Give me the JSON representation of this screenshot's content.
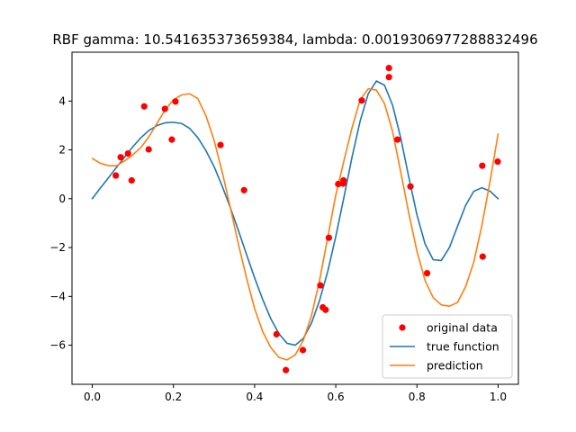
{
  "chart_data": {
    "type": "line",
    "title": "RBF gamma: 10.541635373659384, lambda: 0.0019306977288832496",
    "xlabel": "",
    "ylabel": "",
    "xlim": [
      -0.05,
      1.05
    ],
    "ylim": [
      -7.6,
      6.0
    ],
    "x_ticks": [
      0.0,
      0.2,
      0.4,
      0.6,
      0.8,
      1.0
    ],
    "x_tick_labels": [
      "0.0",
      "0.2",
      "0.4",
      "0.6",
      "0.8",
      "1.0"
    ],
    "y_ticks": [
      -6,
      -4,
      -2,
      0,
      2,
      4
    ],
    "y_tick_labels": [
      "−6",
      "−4",
      "−2",
      "0",
      "2",
      "4"
    ],
    "grid": false,
    "legend": {
      "position": "lower-right",
      "entries": [
        {
          "label": "original data",
          "kind": "marker",
          "color": "#ff0000"
        },
        {
          "label": "true function",
          "kind": "line",
          "color": "#1f77b4"
        },
        {
          "label": "prediction",
          "kind": "line",
          "color": "#ff7f0e"
        }
      ]
    },
    "scatter": {
      "name": "original data",
      "color": "#ff0000",
      "points": [
        [
          0.058,
          0.95
        ],
        [
          0.07,
          1.7
        ],
        [
          0.088,
          1.85
        ],
        [
          0.097,
          0.75
        ],
        [
          0.128,
          3.78
        ],
        [
          0.139,
          2.02
        ],
        [
          0.179,
          3.68
        ],
        [
          0.196,
          2.42
        ],
        [
          0.205,
          3.98
        ],
        [
          0.316,
          2.2
        ],
        [
          0.374,
          0.35
        ],
        [
          0.454,
          -5.55
        ],
        [
          0.477,
          -7.02
        ],
        [
          0.519,
          -6.2
        ],
        [
          0.562,
          -3.55
        ],
        [
          0.568,
          -4.45
        ],
        [
          0.575,
          -4.55
        ],
        [
          0.583,
          -1.6
        ],
        [
          0.606,
          0.6
        ],
        [
          0.618,
          0.62
        ],
        [
          0.619,
          0.75
        ],
        [
          0.664,
          4.02
        ],
        [
          0.731,
          5.35
        ],
        [
          0.731,
          4.98
        ],
        [
          0.752,
          2.42
        ],
        [
          0.784,
          0.5
        ],
        [
          0.825,
          -3.05
        ],
        [
          0.961,
          1.35
        ],
        [
          0.962,
          -2.37
        ],
        [
          0.999,
          1.52
        ]
      ]
    },
    "series": [
      {
        "name": "true function",
        "color": "#1f77b4",
        "x": [
          0.0,
          0.02,
          0.04,
          0.06,
          0.08,
          0.1,
          0.12,
          0.14,
          0.16,
          0.18,
          0.2,
          0.22,
          0.24,
          0.26,
          0.28,
          0.3,
          0.32,
          0.34,
          0.36,
          0.38,
          0.4,
          0.42,
          0.44,
          0.46,
          0.48,
          0.5,
          0.52,
          0.54,
          0.56,
          0.58,
          0.6,
          0.62,
          0.64,
          0.66,
          0.68,
          0.7,
          0.72,
          0.74,
          0.76,
          0.78,
          0.8,
          0.82,
          0.84,
          0.86,
          0.88,
          0.9,
          0.92,
          0.94,
          0.96,
          0.98,
          1.0
        ],
        "y": [
          0.0,
          0.44,
          0.86,
          1.29,
          1.71,
          2.13,
          2.5,
          2.8,
          3.0,
          3.11,
          3.13,
          3.08,
          2.88,
          2.5,
          1.97,
          1.32,
          0.52,
          -0.36,
          -1.3,
          -2.28,
          -3.24,
          -4.13,
          -4.92,
          -5.53,
          -5.92,
          -6.0,
          -5.72,
          -5.1,
          -4.17,
          -2.99,
          -1.55,
          0.05,
          1.7,
          3.18,
          4.3,
          4.82,
          4.65,
          3.83,
          2.49,
          0.88,
          -0.66,
          -1.85,
          -2.5,
          -2.53,
          -2.0,
          -1.13,
          -0.27,
          0.3,
          0.45,
          0.31,
          0.0
        ]
      },
      {
        "name": "prediction",
        "color": "#ff7f0e",
        "x": [
          0.0,
          0.02,
          0.04,
          0.06,
          0.08,
          0.1,
          0.12,
          0.14,
          0.16,
          0.18,
          0.2,
          0.22,
          0.24,
          0.26,
          0.28,
          0.3,
          0.32,
          0.34,
          0.36,
          0.38,
          0.4,
          0.42,
          0.44,
          0.46,
          0.48,
          0.5,
          0.52,
          0.54,
          0.56,
          0.58,
          0.6,
          0.62,
          0.64,
          0.66,
          0.68,
          0.7,
          0.72,
          0.74,
          0.76,
          0.78,
          0.8,
          0.82,
          0.84,
          0.86,
          0.88,
          0.9,
          0.92,
          0.94,
          0.96,
          0.98,
          1.0
        ],
        "y": [
          1.65,
          1.45,
          1.35,
          1.35,
          1.55,
          1.8,
          2.1,
          2.55,
          3.1,
          3.65,
          4.05,
          4.25,
          4.3,
          4.1,
          3.4,
          2.4,
          1.1,
          -0.35,
          -1.85,
          -3.25,
          -4.5,
          -5.45,
          -6.1,
          -6.5,
          -6.6,
          -6.4,
          -5.8,
          -4.8,
          -3.35,
          -1.6,
          0.15,
          1.55,
          2.9,
          4.05,
          4.5,
          4.45,
          3.9,
          2.75,
          1.1,
          -0.6,
          -2.15,
          -3.35,
          -4.05,
          -4.35,
          -4.4,
          -4.25,
          -3.6,
          -2.6,
          -1.1,
          0.7,
          2.65
        ]
      }
    ]
  }
}
